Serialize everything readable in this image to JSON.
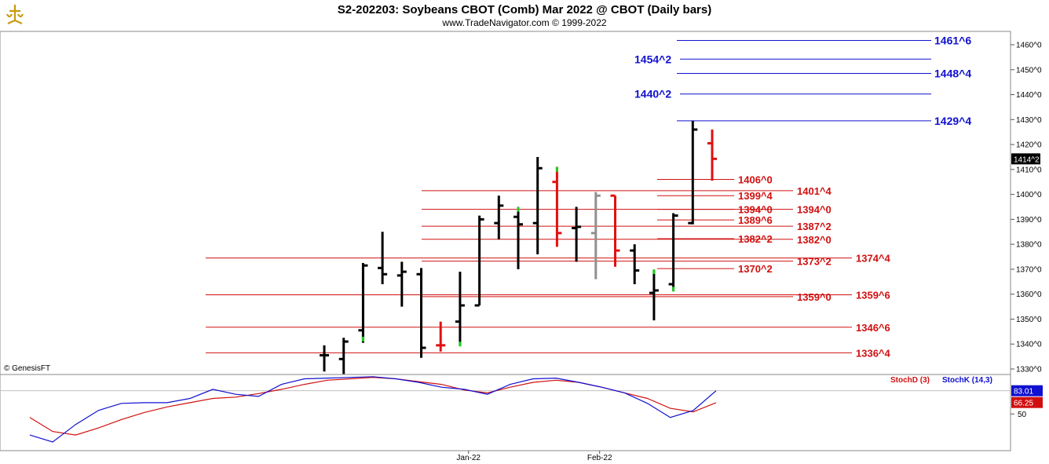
{
  "chart_data": {
    "type": "ohlc",
    "title": "S2-202203:  Soybeans CBOT (Comb) Mar 2022 @ CBOT  (Daily bars)",
    "subtitle": "www.TradeNavigator.com © 1999-2022",
    "credit": "© GenesisFT",
    "price_axis": {
      "min": 1325,
      "max": 1465,
      "ticks": [
        "1330^0",
        "1340^0",
        "1350^0",
        "1360^0",
        "1370^0",
        "1380^0",
        "1390^0",
        "1400^0",
        "1410^0",
        "1420^0",
        "1430^0",
        "1440^0",
        "1450^0",
        "1460^0"
      ],
      "tick_values": [
        1330,
        1340,
        1350,
        1360,
        1370,
        1380,
        1390,
        1400,
        1410,
        1420,
        1430,
        1440,
        1450,
        1460
      ],
      "last_price_label": "1414^2",
      "last_price_value": 1414.25
    },
    "date_labels": [
      {
        "label": "Jan-22",
        "bar_index": 22
      },
      {
        "label": "Feb-22",
        "bar_index": 42
      }
    ],
    "bars": [
      {
        "o": 1335.5,
        "h": 1339.5,
        "l": 1329,
        "c": 1335.5,
        "color": "black"
      },
      {
        "o": 1334,
        "h": 1342.5,
        "l": 1328,
        "c": 1341,
        "color": "black"
      },
      {
        "o": 1345.5,
        "h": 1372.5,
        "l": 1340.5,
        "c": 1371.5,
        "color": "black",
        "green": 1342
      },
      {
        "o": 1370.5,
        "h": 1385,
        "l": 1364,
        "c": 1368,
        "color": "black"
      },
      {
        "o": 1367.5,
        "h": 1373,
        "l": 1355,
        "c": 1369,
        "color": "black"
      },
      {
        "o": 1368,
        "h": 1370.5,
        "l": 1334.5,
        "c": 1338.5,
        "color": "black"
      },
      {
        "o": 1339.5,
        "h": 1349,
        "l": 1337,
        "c": 1339.5,
        "color": "red"
      },
      {
        "o": 1349,
        "h": 1369,
        "l": 1339.5,
        "c": 1355.5,
        "color": "black",
        "green": 1340
      },
      {
        "o": 1355.5,
        "h": 1391.5,
        "l": 1355.5,
        "c": 1390,
        "color": "black"
      },
      {
        "o": 1388.5,
        "h": 1399.5,
        "l": 1382,
        "c": 1395.5,
        "color": "black"
      },
      {
        "o": 1391,
        "h": 1395,
        "l": 1370,
        "c": 1388,
        "color": "black",
        "green": 1394
      },
      {
        "o": 1388.5,
        "h": 1415,
        "l": 1376,
        "c": 1410.5,
        "color": "black"
      },
      {
        "o": 1405,
        "h": 1411,
        "l": 1379,
        "c": 1384.5,
        "color": "red",
        "green": 1410
      },
      {
        "o": 1386.5,
        "h": 1395,
        "l": 1373,
        "c": 1387,
        "color": "black"
      },
      {
        "o": 1384.5,
        "h": 1401,
        "l": 1366,
        "c": 1399.5,
        "color": "gray"
      },
      {
        "o": 1399.5,
        "h": 1399.5,
        "l": 1371,
        "c": 1377.5,
        "color": "red"
      },
      {
        "o": 1377.5,
        "h": 1380,
        "l": 1364,
        "c": 1369.5,
        "color": "black"
      },
      {
        "o": 1360.5,
        "h": 1369.5,
        "l": 1349.5,
        "c": 1361.5,
        "color": "black",
        "green": 1369
      },
      {
        "o": 1364,
        "h": 1392.5,
        "l": 1361.5,
        "c": 1391.5,
        "color": "black",
        "green": 1362
      },
      {
        "o": 1388.5,
        "h": 1429.5,
        "l": 1388,
        "c": 1426,
        "color": "black"
      },
      {
        "o": 1420.5,
        "h": 1426,
        "l": 1405.5,
        "c": 1414.25,
        "color": "red"
      }
    ],
    "levels_blue": [
      {
        "label": "1461^6",
        "value": 1461.75,
        "label_side": "right"
      },
      {
        "label": "1454^2",
        "value": 1454.25,
        "label_side": "left"
      },
      {
        "label": "1448^4",
        "value": 1448.5,
        "label_side": "right"
      },
      {
        "label": "1440^2",
        "value": 1440.25,
        "label_side": "left"
      },
      {
        "label": "1429^4",
        "value": 1429.5,
        "label_side": "right"
      }
    ],
    "levels_red": [
      {
        "label": "1406^0",
        "value": 1406,
        "col": 1
      },
      {
        "label": "1401^4",
        "value": 1401.5,
        "col": 2
      },
      {
        "label": "1399^4",
        "value": 1399.5,
        "col": 1
      },
      {
        "label": "1394^0",
        "value": 1394,
        "col": 1
      },
      {
        "label": "1394^0",
        "value": 1394,
        "col": 2
      },
      {
        "label": "1389^6",
        "value": 1389.75,
        "col": 1
      },
      {
        "label": "1387^2",
        "value": 1387.25,
        "col": 2
      },
      {
        "label": "1382^2",
        "value": 1382.25,
        "col": 1
      },
      {
        "label": "1382^0",
        "value": 1382,
        "col": 2
      },
      {
        "label": "1374^4",
        "value": 1374.5,
        "col": 3
      },
      {
        "label": "1373^2",
        "value": 1373.25,
        "col": 2
      },
      {
        "label": "1370^2",
        "value": 1370.25,
        "col": 1
      },
      {
        "label": "1359^6",
        "value": 1359.75,
        "col": 3
      },
      {
        "label": "1359^0",
        "value": 1359,
        "col": 2
      },
      {
        "label": "1346^6",
        "value": 1346.75,
        "col": 3
      },
      {
        "label": "1336^4",
        "value": 1336.5,
        "col": 3
      }
    ],
    "stochastic": {
      "legend_d": "StochD (3)",
      "legend_k": "StochK (14,3)",
      "tick": "50",
      "tick_value": 50,
      "label_k": "83.01",
      "value_k": 83.01,
      "label_d": "66.25",
      "value_d": 66.25,
      "ymin": 0,
      "ymax": 105,
      "k": [
        20,
        10,
        35,
        55,
        65,
        66,
        66,
        72,
        85,
        78,
        75,
        92,
        100,
        101,
        102,
        103,
        100,
        95,
        88,
        85,
        78,
        92,
        100,
        101,
        95,
        88,
        80,
        65,
        45,
        55,
        83
      ],
      "d": [
        45,
        25,
        20,
        30,
        42,
        52,
        60,
        66,
        72,
        74,
        79,
        85,
        92,
        98,
        100,
        102,
        100,
        96,
        92,
        84,
        80,
        88,
        95,
        98,
        95,
        88,
        80,
        72,
        58,
        53,
        66
      ]
    },
    "colors": {
      "blue_level": "#1010d0",
      "red_level": "#d01010",
      "stoch_k": "#1010d0",
      "stoch_d": "#d01010",
      "bar_green": "#22cc22"
    }
  }
}
